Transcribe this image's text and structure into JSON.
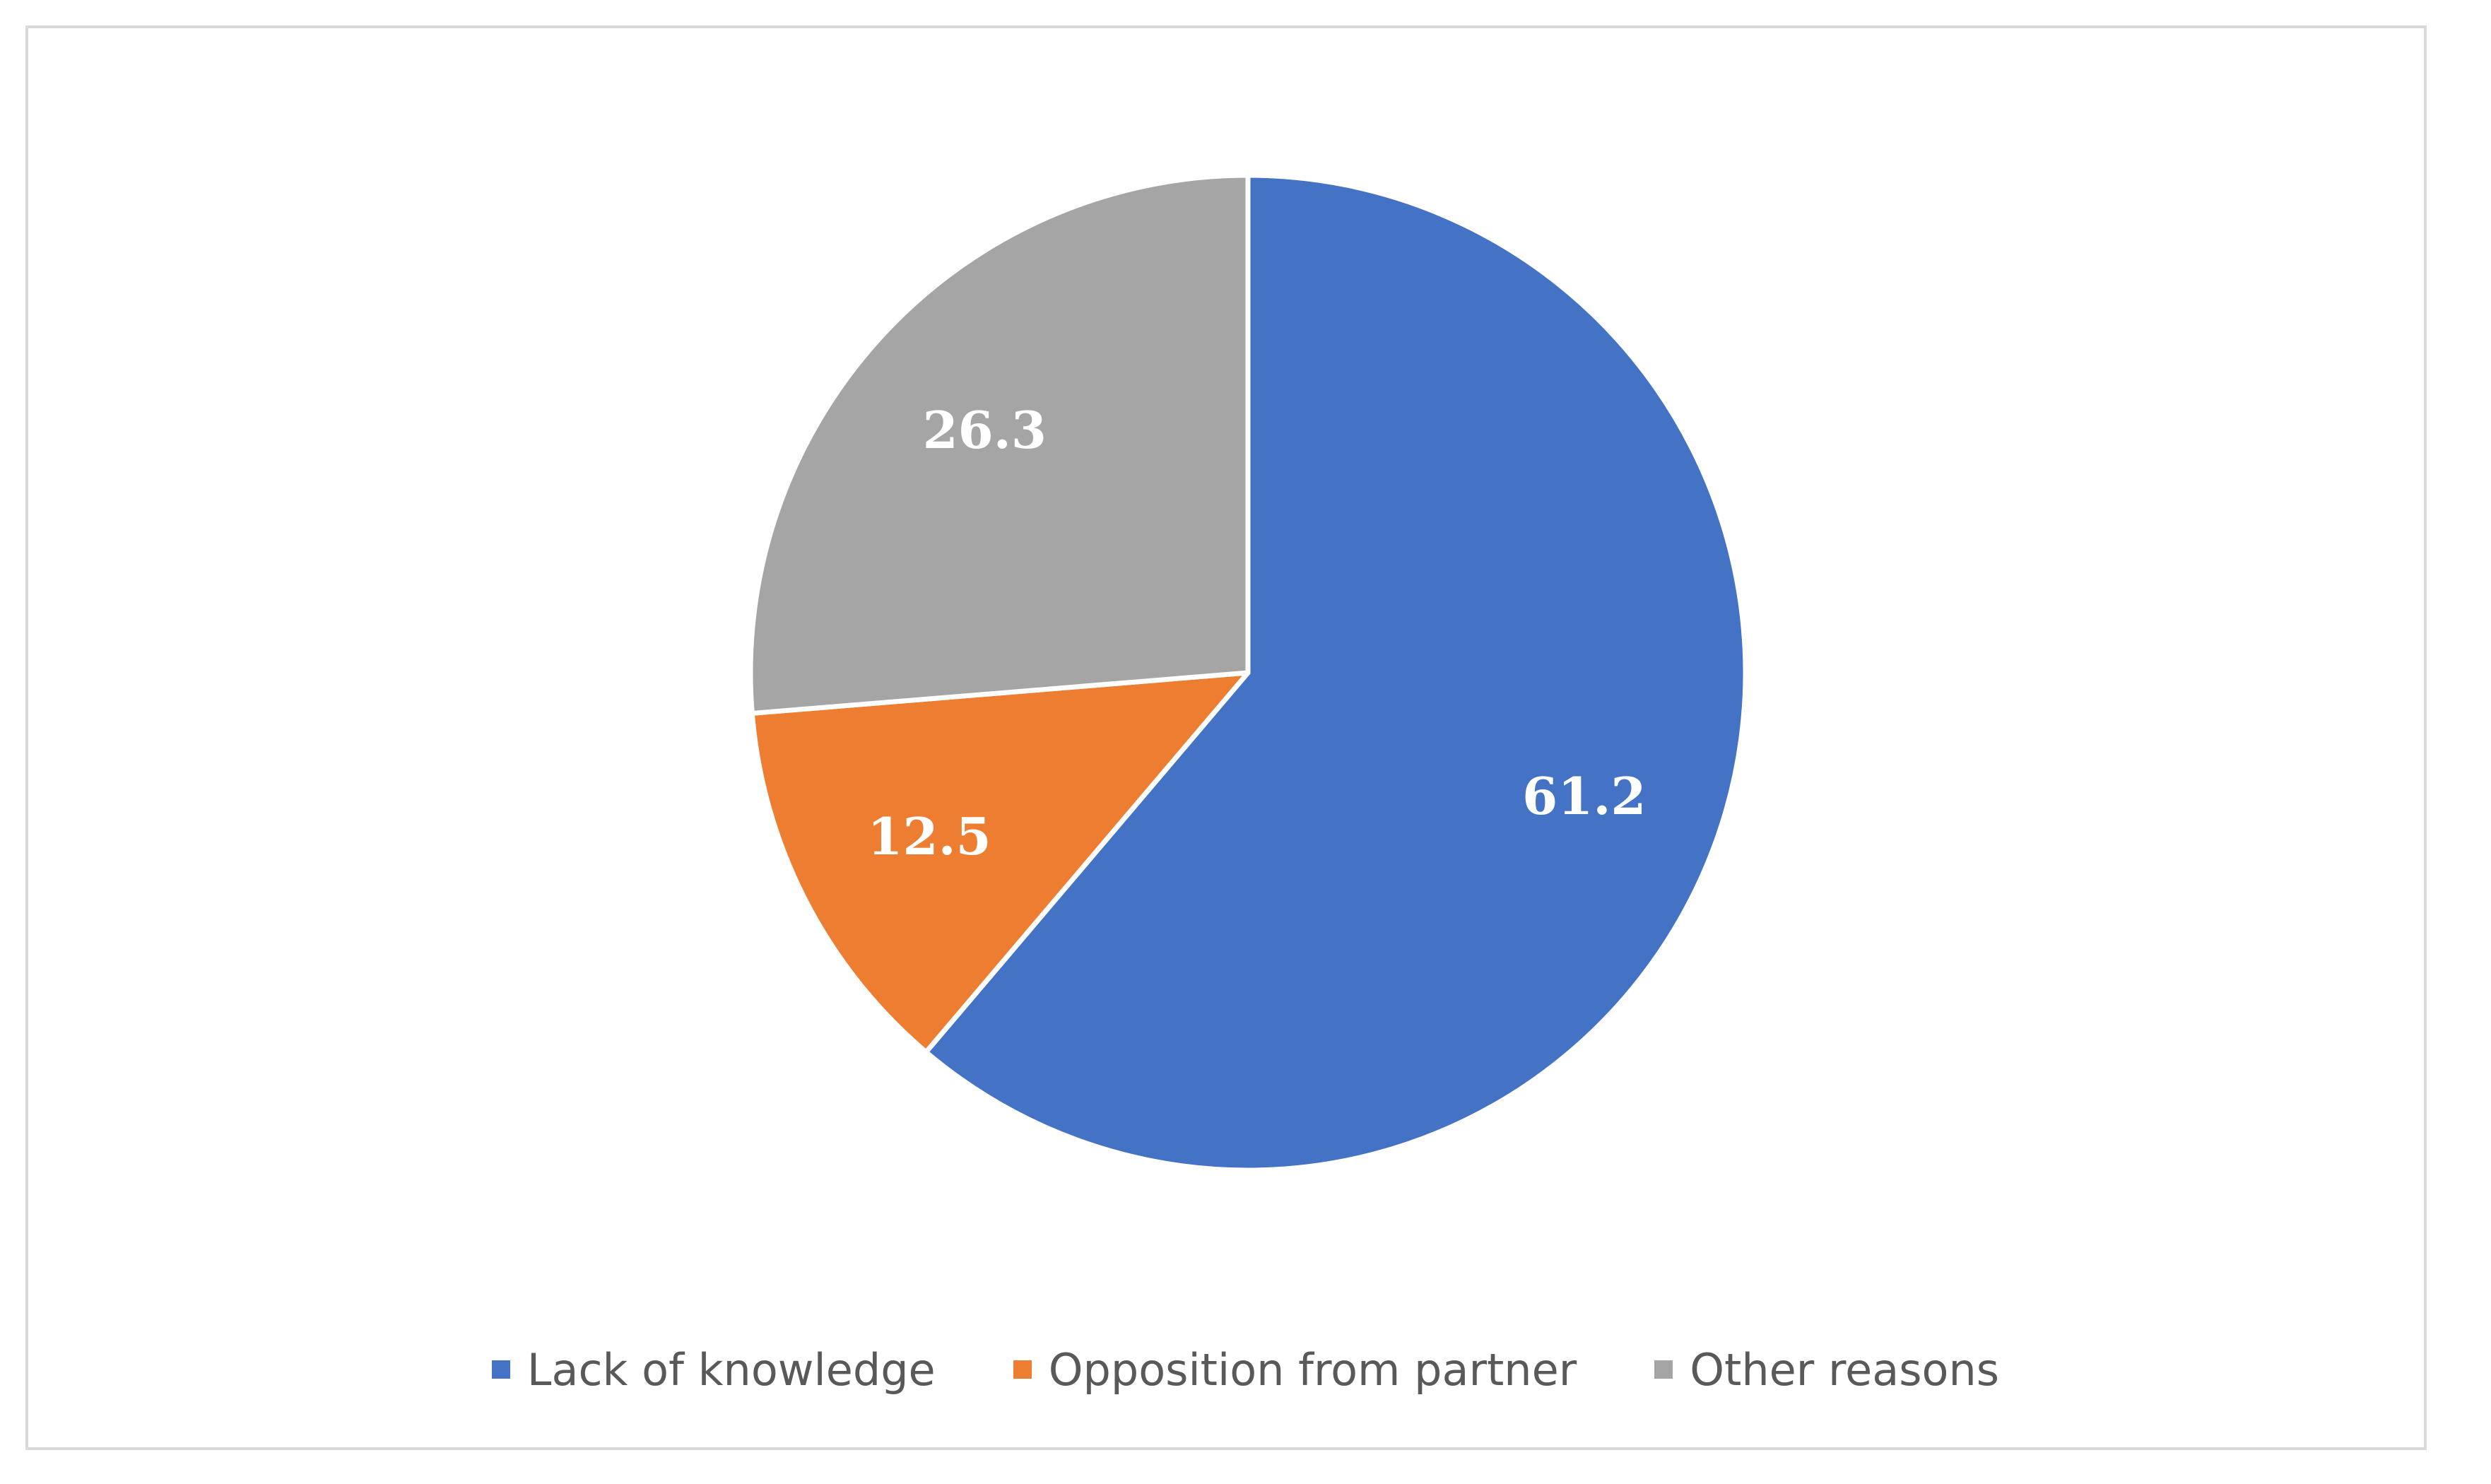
{
  "chart_data": {
    "type": "pie",
    "categories": [
      "Lack of knowledge",
      "Opposition from partner",
      "Other reasons"
    ],
    "values": [
      61.2,
      12.5,
      26.3
    ],
    "data_labels": [
      "61.2",
      "12.5",
      "26.3"
    ],
    "colors": [
      "#4472C4",
      "#ED7D31",
      "#A5A5A5"
    ],
    "start_angle": "12 o'clock",
    "direction": "clockwise",
    "legend_position": "bottom"
  }
}
